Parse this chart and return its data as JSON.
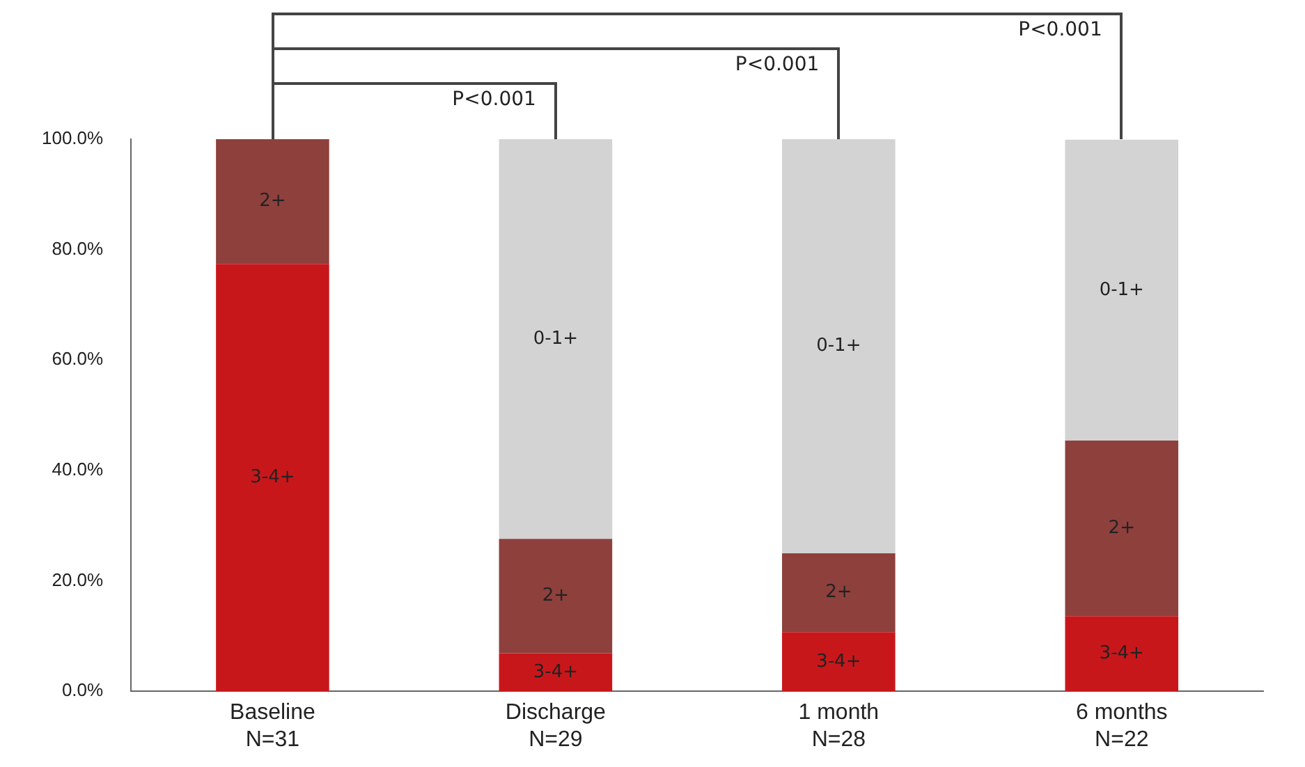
{
  "chart_data": {
    "type": "bar",
    "stacked": true,
    "categories": [
      "Baseline\nN=31",
      "Discharge\nN=29",
      "1 month\nN=28",
      "6 months\nN=22"
    ],
    "series": [
      {
        "name": "3-4+",
        "color": "#c8171b",
        "values": [
          77.4,
          6.9,
          10.7,
          13.6
        ]
      },
      {
        "name": "2+",
        "color": "#8e403d",
        "values": [
          22.6,
          20.7,
          14.3,
          31.8
        ]
      },
      {
        "name": "0-1+",
        "color": "#d3d3d3",
        "values": [
          0,
          72.4,
          75.0,
          54.5
        ]
      }
    ],
    "ylim": [
      0,
      100
    ],
    "yticks": [
      {
        "value": 0,
        "label": "0.0%"
      },
      {
        "value": 20,
        "label": "20.0%"
      },
      {
        "value": 40,
        "label": "40.0%"
      },
      {
        "value": 60,
        "label": "60.0%"
      },
      {
        "value": 80,
        "label": "80.0%"
      },
      {
        "value": 100,
        "label": "100.0%"
      }
    ],
    "grid": false,
    "legend": false,
    "annotations": [
      "P<0.001",
      "P<0.001",
      "P<0.001"
    ]
  }
}
